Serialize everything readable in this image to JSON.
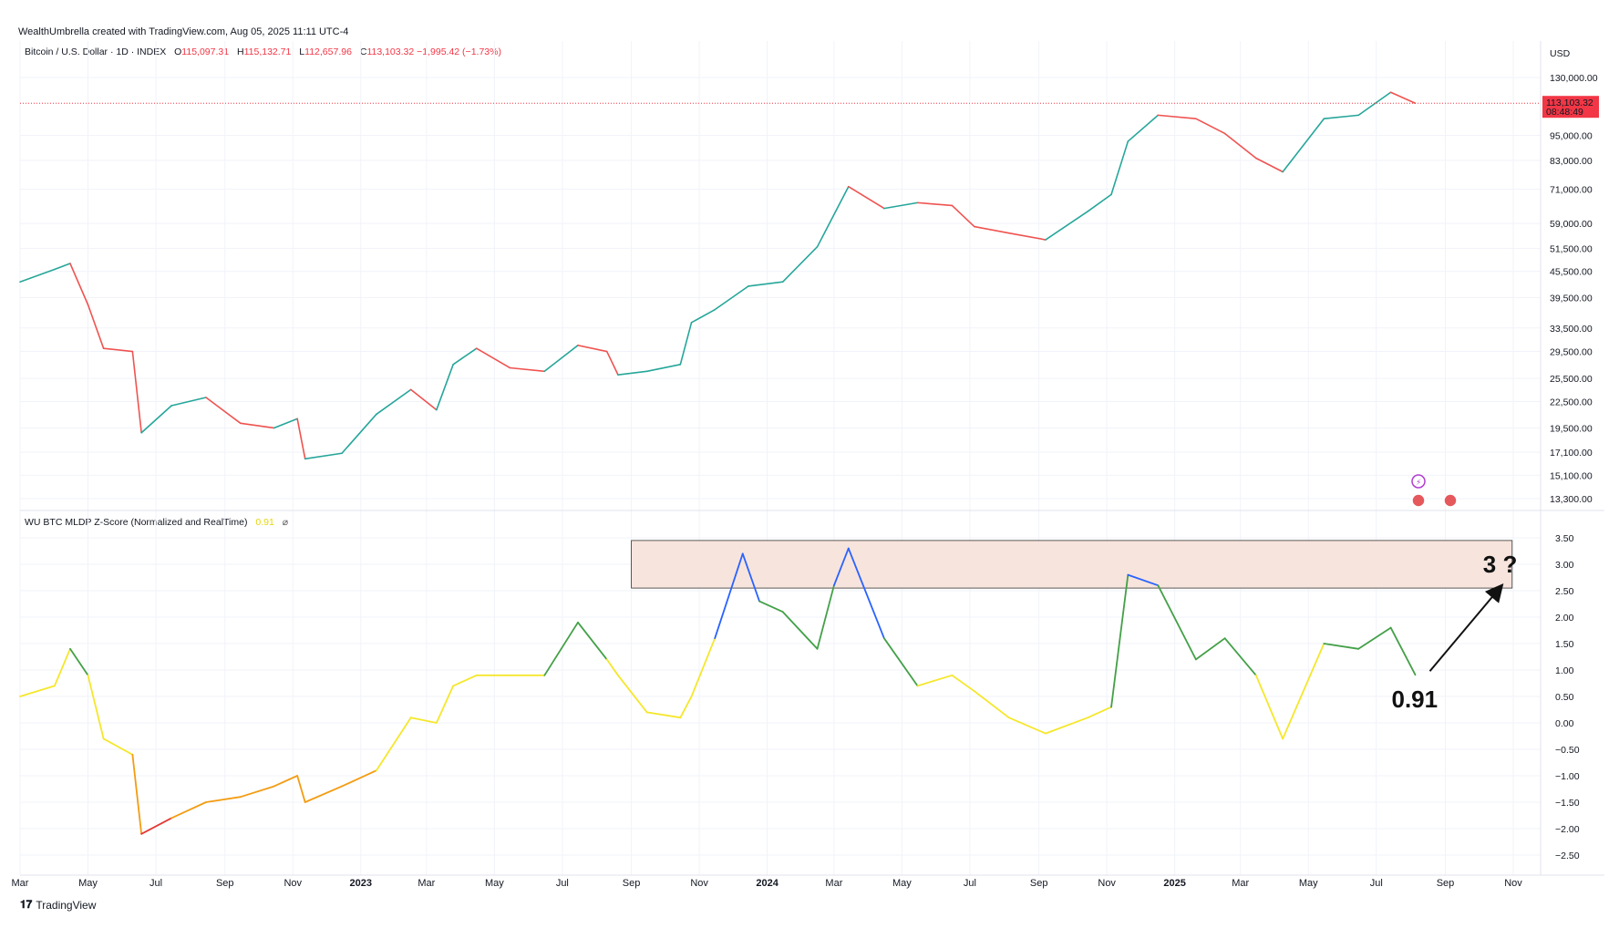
{
  "header": {
    "credit": "WealthUmbrella created with TradingView.com, Aug 05, 2025 11:11 UTC-4"
  },
  "price_legend": {
    "symbol": "Bitcoin / U.S. Dollar · 1D · INDEX",
    "o_label": "O",
    "o": "115,097.31",
    "h_label": "H",
    "h": "115,132.71",
    "l_label": "L",
    "l": "112,657.96",
    "c_label": "C",
    "c": "113,103.32",
    "change": "−1,995.42 (−1.73%)"
  },
  "indicator_legend": {
    "name": "WU BTC MLDP Z-Score (Normalized and RealTime)",
    "value": "0.91",
    "symbol": "⌀"
  },
  "currency": "USD",
  "last_price_badge": {
    "price": "113,103.32",
    "countdown": "08:48:49"
  },
  "annotations": {
    "target": "3 ?",
    "current": "0.91"
  },
  "brand": "TradingView",
  "colors": {
    "up": "#26a69a",
    "down": "#ef5350",
    "badge": "#f23645",
    "zone": "#f7e4dc",
    "zone_border": "#333333"
  },
  "chart_data": [
    {
      "type": "line",
      "title": "Bitcoin / U.S. Dollar · 1D · INDEX",
      "scale": "log",
      "y_ticks": [
        "130,000.00",
        "95,000.00",
        "83,000.00",
        "71,000.00",
        "59,000.00",
        "51,500.00",
        "45,500.00",
        "39,500.00",
        "33,500.00",
        "29,500.00",
        "25,500.00",
        "22,500.00",
        "19,500.00",
        "17,100.00",
        "15,100.00",
        "13,300.00"
      ],
      "y_tick_values": [
        130000,
        95000,
        83000,
        71000,
        59000,
        51500,
        45500,
        39500,
        33500,
        29500,
        25500,
        22500,
        19500,
        17100,
        15100,
        13300
      ],
      "x_ticks": [
        "Mar",
        "May",
        "Jul",
        "Sep",
        "Nov",
        "2023",
        "Mar",
        "May",
        "Jul",
        "Sep",
        "Nov",
        "2024",
        "Mar",
        "May",
        "Jul",
        "Sep",
        "Nov",
        "2025",
        "Mar",
        "May",
        "Jul",
        "Sep",
        "Nov"
      ],
      "x_tick_dates": [
        "2022-03-01",
        "2022-05-01",
        "2022-07-01",
        "2022-09-01",
        "2022-11-01",
        "2023-01-01",
        "2023-03-01",
        "2023-05-01",
        "2023-07-01",
        "2023-09-01",
        "2023-11-01",
        "2024-01-01",
        "2024-03-01",
        "2024-05-01",
        "2024-07-01",
        "2024-09-01",
        "2024-11-01",
        "2025-01-01",
        "2025-03-01",
        "2025-05-01",
        "2025-07-01",
        "2025-09-01",
        "2025-11-01"
      ],
      "x": [
        "2022-03-01",
        "2022-04-01",
        "2022-04-15",
        "2022-05-01",
        "2022-05-15",
        "2022-06-10",
        "2022-06-18",
        "2022-07-15",
        "2022-08-15",
        "2022-09-15",
        "2022-10-15",
        "2022-11-05",
        "2022-11-12",
        "2022-12-15",
        "2023-01-15",
        "2023-02-15",
        "2023-03-10",
        "2023-03-25",
        "2023-04-15",
        "2023-05-15",
        "2023-06-15",
        "2023-07-15",
        "2023-08-10",
        "2023-08-20",
        "2023-09-15",
        "2023-10-15",
        "2023-10-25",
        "2023-11-15",
        "2023-12-15",
        "2024-01-15",
        "2024-02-15",
        "2024-03-14",
        "2024-04-15",
        "2024-05-15",
        "2024-06-15",
        "2024-07-05",
        "2024-08-05",
        "2024-09-07",
        "2024-10-15",
        "2024-11-05",
        "2024-11-20",
        "2024-12-17",
        "2025-01-20",
        "2025-02-15",
        "2025-03-15",
        "2025-04-08",
        "2025-05-15",
        "2025-06-15",
        "2025-07-14",
        "2025-08-05"
      ],
      "series": [
        {
          "values": [
            43000,
            46000,
            47500,
            38000,
            30000,
            29500,
            19000,
            22000,
            23000,
            20000,
            19500,
            20500,
            16500,
            17000,
            21000,
            24000,
            21500,
            27500,
            30000,
            27000,
            26500,
            30500,
            29500,
            26000,
            26500,
            27500,
            34500,
            37000,
            42000,
            43000,
            52000,
            72000,
            64000,
            66000,
            65000,
            58000,
            56000,
            54000,
            63000,
            69000,
            92000,
            106000,
            104000,
            96000,
            84000,
            78000,
            104000,
            106000,
            120000,
            113103
          ]
        }
      ],
      "last_price": 113103.32
    },
    {
      "type": "line",
      "title": "WU BTC MLDP Z-Score (Normalized and RealTime)",
      "y_ticks": [
        "3.50",
        "3.00",
        "2.50",
        "2.00",
        "1.50",
        "1.00",
        "0.50",
        "0.00",
        "−0.50",
        "−1.00",
        "−1.50",
        "−2.00",
        "−2.50"
      ],
      "y_tick_values": [
        3.5,
        3.0,
        2.5,
        2.0,
        1.5,
        1.0,
        0.5,
        0.0,
        -0.5,
        -1.0,
        -1.5,
        -2.0,
        -2.5
      ],
      "x": [
        "2022-03-01",
        "2022-04-01",
        "2022-04-15",
        "2022-05-01",
        "2022-05-15",
        "2022-06-10",
        "2022-06-18",
        "2022-07-15",
        "2022-08-15",
        "2022-09-15",
        "2022-10-15",
        "2022-11-05",
        "2022-11-12",
        "2022-12-15",
        "2023-01-15",
        "2023-02-15",
        "2023-03-10",
        "2023-03-25",
        "2023-04-15",
        "2023-05-15",
        "2023-06-15",
        "2023-07-15",
        "2023-08-10",
        "2023-08-20",
        "2023-09-15",
        "2023-10-15",
        "2023-10-25",
        "2023-11-15",
        "2023-12-10",
        "2023-12-25",
        "2024-01-15",
        "2024-02-15",
        "2024-03-01",
        "2024-03-14",
        "2024-04-15",
        "2024-05-15",
        "2024-06-15",
        "2024-07-05",
        "2024-08-05",
        "2024-09-07",
        "2024-10-15",
        "2024-11-05",
        "2024-11-20",
        "2024-12-17",
        "2025-01-20",
        "2025-02-15",
        "2025-03-15",
        "2025-04-08",
        "2025-05-15",
        "2025-06-15",
        "2025-07-14",
        "2025-08-05"
      ],
      "series": [
        {
          "values": [
            0.5,
            0.7,
            1.4,
            0.9,
            -0.3,
            -0.6,
            -2.1,
            -1.8,
            -1.5,
            -1.4,
            -1.2,
            -1.0,
            -1.5,
            -1.2,
            -0.9,
            0.1,
            0.0,
            0.7,
            0.9,
            0.9,
            0.9,
            1.9,
            1.2,
            0.9,
            0.2,
            0.1,
            0.5,
            1.6,
            3.2,
            2.3,
            2.1,
            1.4,
            2.6,
            3.3,
            1.6,
            0.7,
            0.9,
            0.6,
            0.1,
            -0.2,
            0.1,
            0.3,
            2.8,
            2.6,
            1.2,
            1.6,
            0.9,
            -0.3,
            1.5,
            1.4,
            1.8,
            0.91
          ]
        }
      ],
      "color_thresholds": {
        "red": "< -1.8",
        "orange": "-1.8 to -0.9",
        "yellow": "-0.9 to 1.1",
        "green": "1.1 to 2.2",
        "blue": "> 2.2"
      },
      "highlight_zone": {
        "from_date": "2023-09-01",
        "to_date": "2025-10-31",
        "y_min": 2.55,
        "y_max": 3.45
      },
      "current_value": 0.91,
      "target_value": 3
    }
  ]
}
